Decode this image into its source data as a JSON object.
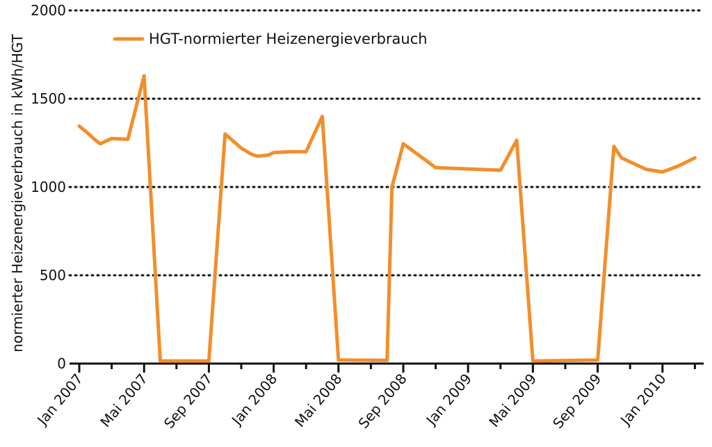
{
  "chart_data": {
    "type": "line",
    "ylabel": "normierter Heizenergieverbrauch in kWh/HGT",
    "ylim": [
      0,
      2000
    ],
    "yticks": [
      0,
      500,
      1000,
      1500,
      2000
    ],
    "y_grid": "dotted",
    "legend_position": "top-left",
    "x_tick_labels": [
      "Jan 2007",
      "Mai 2007",
      "Sep 2007",
      "Jan 2008",
      "Mai 2008",
      "Sep 2008",
      "Jan 2009",
      "Mai 2009",
      "Sep 2009",
      "Jan 2010"
    ],
    "x_minor_ticks": [
      "Mar 2007",
      "Jul 2007",
      "Nov 2007",
      "Mar 2008",
      "Jul 2008",
      "Nov 2008",
      "Mar 2009",
      "Jul 2009",
      "Nov 2009",
      "Mar 2010"
    ],
    "series": [
      {
        "name": "HGT-normierter Heizenergieverbrauch",
        "color": "#f28e2b",
        "points": [
          {
            "x": "2007-01",
            "y": 1345
          },
          {
            "x": "2007-01-15",
            "y": 1310
          },
          {
            "x": "2007-02",
            "y": 1265
          },
          {
            "x": "2007-02-10",
            "y": 1245
          },
          {
            "x": "2007-03",
            "y": 1275
          },
          {
            "x": "2007-04",
            "y": 1270
          },
          {
            "x": "2007-05",
            "y": 1630
          },
          {
            "x": "2007-06",
            "y": 15
          },
          {
            "x": "2007-09",
            "y": 15
          },
          {
            "x": "2007-10",
            "y": 1300
          },
          {
            "x": "2007-11",
            "y": 1220
          },
          {
            "x": "2007-11-20",
            "y": 1185
          },
          {
            "x": "2007-12",
            "y": 1175
          },
          {
            "x": "2007-12-20",
            "y": 1180
          },
          {
            "x": "2008-01",
            "y": 1195
          },
          {
            "x": "2008-02",
            "y": 1200
          },
          {
            "x": "2008-03",
            "y": 1200
          },
          {
            "x": "2008-04",
            "y": 1400
          },
          {
            "x": "2008-05",
            "y": 20
          },
          {
            "x": "2008-08",
            "y": 18
          },
          {
            "x": "2008-08-10",
            "y": 1000
          },
          {
            "x": "2008-09",
            "y": 1245
          },
          {
            "x": "2008-11",
            "y": 1110
          },
          {
            "x": "2009-03",
            "y": 1095
          },
          {
            "x": "2009-04",
            "y": 1265
          },
          {
            "x": "2009-05",
            "y": 15
          },
          {
            "x": "2009-09",
            "y": 20
          },
          {
            "x": "2009-10",
            "y": 1230
          },
          {
            "x": "2009-10-15",
            "y": 1165
          },
          {
            "x": "2009-12",
            "y": 1100
          },
          {
            "x": "2010-01",
            "y": 1085
          },
          {
            "x": "2010-02",
            "y": 1120
          },
          {
            "x": "2010-03",
            "y": 1165
          }
        ]
      }
    ]
  }
}
